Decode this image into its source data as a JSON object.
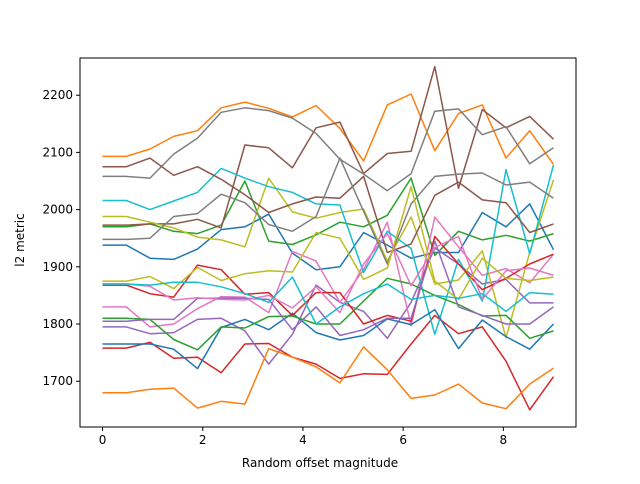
{
  "chart_data": {
    "type": "line",
    "title": "",
    "xlabel": "Random offset magnitude",
    "ylabel": "l2 metric",
    "xlim": [
      -0.45,
      9.45
    ],
    "ylim": [
      1620,
      2265
    ],
    "xticks": [
      0,
      2,
      4,
      6,
      8
    ],
    "yticks": [
      1700,
      1800,
      1900,
      2000,
      2100,
      2200
    ],
    "grid": false,
    "legend": "none",
    "x": [
      0,
      0.4737,
      0.9474,
      1.4211,
      1.8947,
      2.3684,
      2.8421,
      3.3158,
      3.7895,
      4.2632,
      4.7368,
      5.2105,
      5.6842,
      6.1579,
      6.6316,
      7.1053,
      7.5789,
      8.0526,
      8.5263,
      9.0
    ],
    "series": [
      {
        "color": "#1f77b4",
        "values": [
          1938,
          1938,
          1915,
          1913,
          1931,
          1965,
          1970,
          1992,
          1924,
          1895,
          1900,
          1960,
          1938,
          1915,
          1925,
          1925,
          1995,
          1970,
          2010,
          1930
        ]
      },
      {
        "color": "#ff7f0e",
        "values": [
          2093,
          2093,
          2106,
          2128,
          2138,
          2178,
          2188,
          2177,
          2162,
          2182,
          2142,
          2085,
          2183,
          2202,
          2103,
          2168,
          2183,
          2090,
          2138,
          2079
        ]
      },
      {
        "color": "#2ca02c",
        "values": [
          1970,
          1970,
          1975,
          1962,
          1958,
          1973,
          2050,
          1945,
          1939,
          1956,
          1978,
          1970,
          1990,
          2055,
          1920,
          1962,
          1947,
          1955,
          1945,
          1958
        ]
      },
      {
        "color": "#d62728",
        "values": [
          1758,
          1758,
          1768,
          1740,
          1742,
          1715,
          1765,
          1766,
          1742,
          1730,
          1705,
          1713,
          1712,
          1765,
          1815,
          1783,
          1795,
          1735,
          1650,
          1708
        ]
      },
      {
        "color": "#9467bd",
        "values": [
          1795,
          1795,
          1783,
          1785,
          1808,
          1810,
          1788,
          1730,
          1782,
          1868,
          1838,
          1822,
          1775,
          1838,
          1933,
          1905,
          1870,
          1878,
          1837,
          1837
        ]
      },
      {
        "color": "#8c564b",
        "values": [
          1973,
          1973,
          1975,
          1975,
          1983,
          1968,
          2113,
          2108,
          2073,
          2143,
          2153,
          2063,
          2098,
          2102,
          2250,
          2037,
          2175,
          2143,
          2163,
          2123
        ]
      },
      {
        "color": "#e377c2",
        "values": [
          1830,
          1830,
          1795,
          1800,
          1827,
          1848,
          1847,
          1820,
          1927,
          1910,
          1838,
          1895,
          1978,
          1797,
          1987,
          1935,
          1885,
          1897,
          1872,
          1922
        ]
      },
      {
        "color": "#7f7f7f",
        "values": [
          2058,
          2058,
          2055,
          2097,
          2125,
          2170,
          2178,
          2173,
          2160,
          2133,
          2088,
          2062,
          2033,
          2063,
          2172,
          2176,
          2131,
          2145,
          2080,
          2108
        ]
      },
      {
        "color": "#bcbd22",
        "values": [
          1988,
          1988,
          1978,
          1968,
          1952,
          1947,
          1935,
          2055,
          1996,
          1985,
          1995,
          2001,
          1910,
          1987,
          1870,
          1877,
          1928,
          1776,
          1925,
          2052
        ]
      },
      {
        "color": "#17becf",
        "values": [
          2016,
          2016,
          2000,
          2015,
          2030,
          2072,
          2055,
          2040,
          2030,
          2010,
          2008,
          1890,
          1962,
          1932,
          1782,
          1913,
          1840,
          2070,
          1923,
          2078
        ]
      },
      {
        "color": "#1f77b4",
        "values": [
          1765,
          1765,
          1765,
          1756,
          1722,
          1794,
          1808,
          1790,
          1819,
          1785,
          1772,
          1780,
          1809,
          1799,
          1825,
          1757,
          1807,
          1778,
          1756,
          1800
        ]
      },
      {
        "color": "#ff7f0e",
        "values": [
          1680,
          1680,
          1686,
          1688,
          1653,
          1665,
          1660,
          1757,
          1742,
          1725,
          1697,
          1760,
          1720,
          1670,
          1676,
          1695,
          1662,
          1652,
          1695,
          1723
        ]
      },
      {
        "color": "#2ca02c",
        "values": [
          1810,
          1810,
          1808,
          1773,
          1755,
          1795,
          1793,
          1813,
          1814,
          1800,
          1800,
          1840,
          1880,
          1870,
          1850,
          1834,
          1814,
          1815,
          1775,
          1788
        ]
      },
      {
        "color": "#d62728",
        "values": [
          1868,
          1868,
          1853,
          1847,
          1903,
          1895,
          1852,
          1855,
          1815,
          1855,
          1855,
          1800,
          1815,
          1805,
          1953,
          1905,
          1860,
          1880,
          1905,
          1922
        ]
      },
      {
        "color": "#9467bd",
        "values": [
          1805,
          1805,
          1808,
          1808,
          1845,
          1845,
          1845,
          1843,
          1790,
          1830,
          1780,
          1790,
          1810,
          1810,
          1945,
          1830,
          1815,
          1800,
          1800,
          1830
        ]
      },
      {
        "color": "#8c564b",
        "values": [
          2075,
          2075,
          2090,
          2060,
          2075,
          2053,
          2026,
          1995,
          2010,
          2022,
          2020,
          2058,
          1925,
          1940,
          2025,
          2048,
          2017,
          2012,
          1960,
          1975
        ]
      },
      {
        "color": "#e377c2",
        "values": [
          1870,
          1870,
          1866,
          1842,
          1846,
          1843,
          1842,
          1850,
          1828,
          1865,
          1820,
          1905,
          1958,
          1867,
          1934,
          1953,
          1843,
          1893,
          1898,
          1885
        ]
      },
      {
        "color": "#7f7f7f",
        "values": [
          1948,
          1948,
          1950,
          1988,
          1993,
          2027,
          2012,
          1974,
          1962,
          1988,
          2090,
          1997,
          1905,
          2010,
          2058,
          2062,
          2064,
          2043,
          2048,
          2020
        ]
      },
      {
        "color": "#bcbd22",
        "values": [
          1875,
          1875,
          1883,
          1862,
          1899,
          1876,
          1888,
          1893,
          1891,
          1960,
          1950,
          1878,
          1898,
          2040,
          1875,
          1843,
          1915,
          1880,
          1876,
          1882
        ]
      },
      {
        "color": "#17becf",
        "values": [
          1870,
          1870,
          1868,
          1873,
          1873,
          1865,
          1853,
          1838,
          1882,
          1800,
          1830,
          1853,
          1870,
          1843,
          1850,
          1845,
          1853,
          1822,
          1855,
          1852
        ]
      }
    ]
  }
}
